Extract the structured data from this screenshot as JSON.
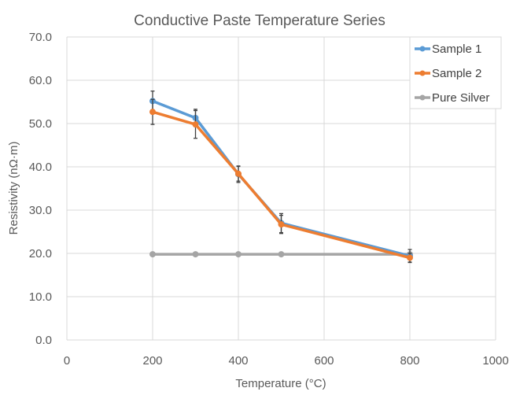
{
  "chart_data": {
    "type": "scatter",
    "title": "Conductive Paste Temperature Series",
    "xlabel": "Temperature (°C)",
    "ylabel": "Resistivity (nΩ·m)",
    "xlim": [
      0,
      1000
    ],
    "ylim": [
      0,
      70
    ],
    "x_ticks": [
      0,
      200,
      400,
      600,
      800,
      1000
    ],
    "y_ticks": [
      0,
      10,
      20,
      30,
      40,
      50,
      60,
      70
    ],
    "y_tick_labels": [
      "0.0",
      "10.0",
      "20.0",
      "30.0",
      "40.0",
      "50.0",
      "60.0",
      "70.0"
    ],
    "grid": true,
    "legend_position": "top-right",
    "series": [
      {
        "name": "Sample 1",
        "color": "#5B9BD5",
        "x": [
          200,
          300,
          400,
          500,
          800
        ],
        "y": [
          55.2,
          51.3,
          38.3,
          27.0,
          19.4
        ],
        "error": [
          2.3,
          2.0,
          1.9,
          2.2,
          1.5
        ]
      },
      {
        "name": "Sample 2",
        "color": "#ED7D31",
        "x": [
          200,
          300,
          400,
          500,
          800
        ],
        "y": [
          52.7,
          49.8,
          38.4,
          26.7,
          19.0
        ],
        "error": [
          2.9,
          3.2,
          1.7,
          2.1,
          1.0
        ]
      },
      {
        "name": "Pure Silver",
        "color": "#A5A5A5",
        "x": [
          200,
          300,
          400,
          500,
          800
        ],
        "y": [
          19.8,
          19.8,
          19.8,
          19.8,
          19.8
        ]
      }
    ]
  }
}
